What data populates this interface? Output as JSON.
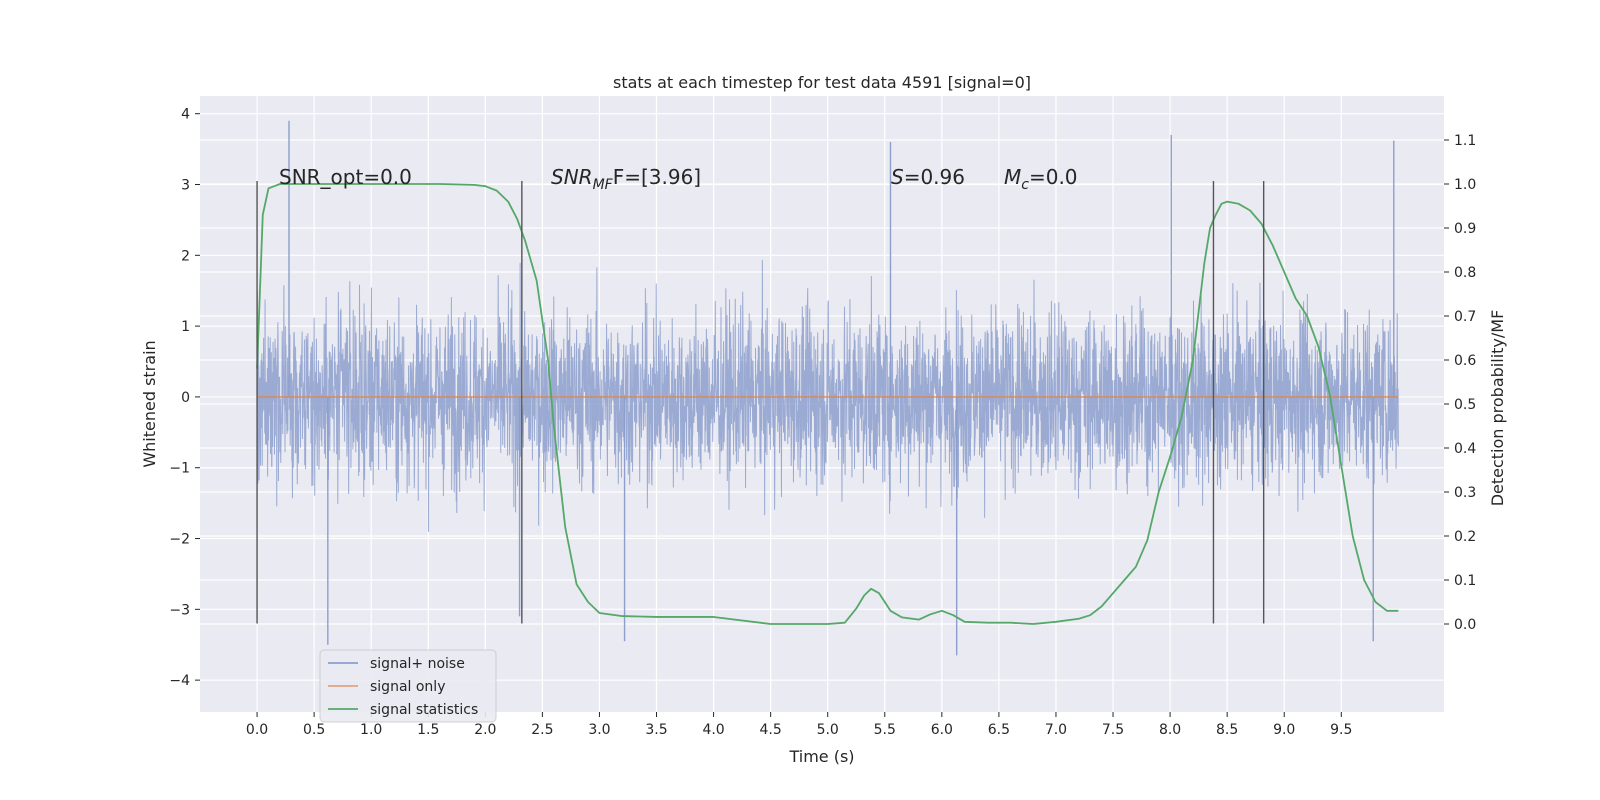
{
  "chart_data": {
    "type": "line",
    "title": "stats at each timestep for test data 4591 [signal=0]",
    "xlabel": "Time (s)",
    "ylabel_left": "Whitened strain",
    "ylabel_right": "Detection probability/MF",
    "xlim": [
      -0.5,
      10.4
    ],
    "ylim_left": [
      -4.45,
      4.25
    ],
    "ylim_right": [
      -0.2,
      1.2
    ],
    "x_ticks": [
      "0.0",
      "0.5",
      "1.0",
      "1.5",
      "2.0",
      "2.5",
      "3.0",
      "3.5",
      "4.0",
      "4.5",
      "5.0",
      "5.5",
      "6.0",
      "6.5",
      "7.0",
      "7.5",
      "8.0",
      "8.5",
      "9.0",
      "9.5"
    ],
    "y_left_ticks": [
      "−4",
      "−3",
      "−2",
      "−1",
      "0",
      "1",
      "2",
      "3",
      "4"
    ],
    "y_right_ticks": [
      "0.0",
      "0.1",
      "0.2",
      "0.3",
      "0.4",
      "0.5",
      "0.6",
      "0.7",
      "0.8",
      "0.9",
      "1.0",
      "1.1"
    ],
    "grid": true,
    "background": "#eaeaf2",
    "legend_position": "lower-left",
    "annotations": {
      "snr_opt": "SNR_opt=0.0",
      "snr_mf_main": "SNR",
      "snr_mf_sub": "MF",
      "snr_mf_rest": "F=[3.96]",
      "s_main": "S",
      "s_rest": "=0.96",
      "mc_main": "M",
      "mc_sub": "c",
      "mc_rest": "=0.0"
    },
    "vertical_lines_x": [
      0.0,
      2.32,
      8.38,
      8.82
    ],
    "series": [
      {
        "name": "signal+ noise",
        "color": "#8c9fcc",
        "axis": "left",
        "x_range": [
          0.0,
          10.0
        ],
        "envelope": {
          "dense_max": 2.0,
          "dense_min": -2.0,
          "peak_max": 3.9,
          "peak_min": -3.7
        },
        "annotated_peaks": [
          [
            0.28,
            3.9
          ],
          [
            0.62,
            -3.5
          ],
          [
            2.3,
            -3.1
          ],
          [
            5.55,
            3.6
          ],
          [
            6.13,
            -3.65
          ],
          [
            8.01,
            3.7
          ],
          [
            9.96,
            3.62
          ],
          [
            9.78,
            -3.45
          ],
          [
            3.22,
            -3.45
          ]
        ]
      },
      {
        "name": "signal only",
        "color": "#dd8452",
        "axis": "left",
        "x": [
          0.0,
          10.0
        ],
        "values": [
          0.0,
          0.0
        ]
      },
      {
        "name": "signal statistics",
        "color": "#55a868",
        "axis": "right",
        "x": [
          0.0,
          0.05,
          0.1,
          0.15,
          0.2,
          0.4,
          0.8,
          1.2,
          1.6,
          1.9,
          2.0,
          2.1,
          2.2,
          2.28,
          2.35,
          2.45,
          2.55,
          2.6,
          2.7,
          2.8,
          2.9,
          3.0,
          3.2,
          3.5,
          4.0,
          4.5,
          5.0,
          5.15,
          5.25,
          5.32,
          5.38,
          5.45,
          5.55,
          5.65,
          5.8,
          5.9,
          6.0,
          6.1,
          6.2,
          6.4,
          6.6,
          6.8,
          7.0,
          7.2,
          7.3,
          7.4,
          7.5,
          7.6,
          7.7,
          7.8,
          7.9,
          8.0,
          8.1,
          8.2,
          8.3,
          8.35,
          8.4,
          8.45,
          8.5,
          8.6,
          8.7,
          8.8,
          8.9,
          9.0,
          9.1,
          9.2,
          9.3,
          9.4,
          9.5,
          9.6,
          9.7,
          9.8,
          9.9,
          10.0
        ],
        "values": [
          0.58,
          0.93,
          0.99,
          0.995,
          1.0,
          1.0,
          1.0,
          1.0,
          1.0,
          0.998,
          0.995,
          0.985,
          0.96,
          0.92,
          0.87,
          0.78,
          0.6,
          0.45,
          0.22,
          0.09,
          0.05,
          0.025,
          0.018,
          0.016,
          0.016,
          0.0,
          0.0,
          0.003,
          0.035,
          0.065,
          0.08,
          0.07,
          0.03,
          0.015,
          0.01,
          0.022,
          0.03,
          0.02,
          0.005,
          0.003,
          0.003,
          0.0,
          0.005,
          0.012,
          0.02,
          0.04,
          0.07,
          0.1,
          0.13,
          0.19,
          0.3,
          0.38,
          0.47,
          0.6,
          0.82,
          0.9,
          0.93,
          0.955,
          0.96,
          0.955,
          0.94,
          0.91,
          0.86,
          0.8,
          0.74,
          0.7,
          0.63,
          0.52,
          0.36,
          0.2,
          0.1,
          0.05,
          0.03,
          0.03
        ]
      }
    ]
  }
}
